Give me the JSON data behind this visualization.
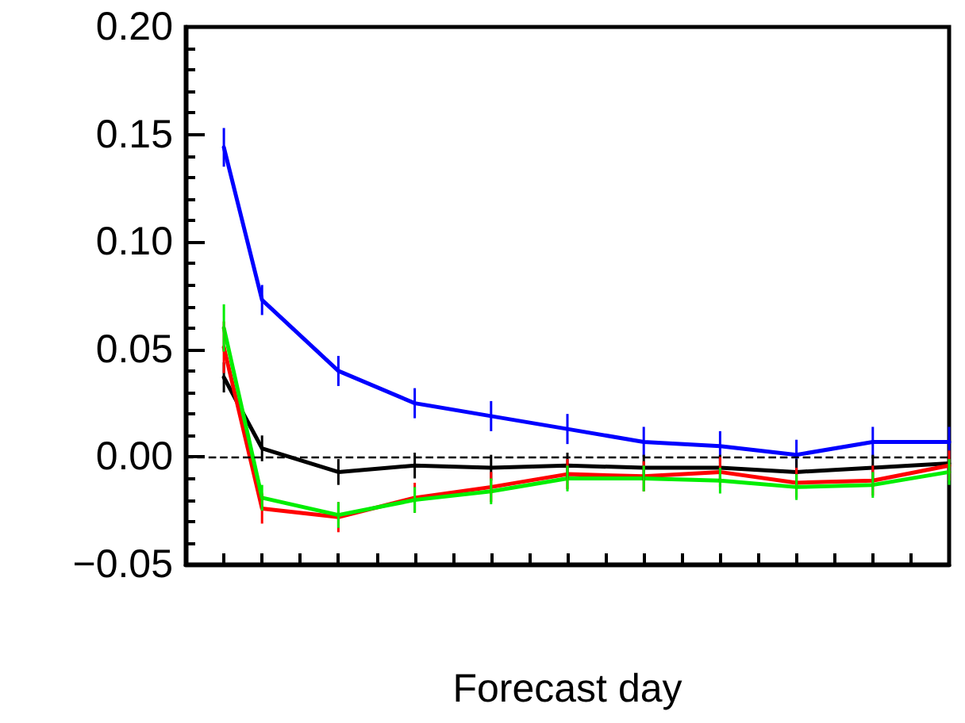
{
  "chart_data": {
    "type": "line",
    "xlabel": "Forecast day",
    "categories": [
      null,
      null,
      null,
      null,
      null,
      null,
      null,
      null,
      null,
      null,
      null,
      null,
      null,
      null,
      null,
      null,
      null,
      null,
      null,
      null,
      null
    ],
    "series": [
      {
        "color": "#0000ff",
        "values": [
          null,
          0.144,
          0.073,
          null,
          0.04,
          null,
          0.025,
          null,
          0.019,
          null,
          0.013,
          null,
          0.007,
          null,
          0.005,
          null,
          0.001,
          null,
          0.007,
          null,
          0.007
        ],
        "errors": [
          null,
          0.009,
          0.007,
          null,
          0.007,
          null,
          0.007,
          null,
          0.007,
          null,
          0.007,
          null,
          0.007,
          null,
          0.007,
          null,
          0.007,
          null,
          0.007,
          null,
          0.007
        ]
      },
      {
        "color": "#000000",
        "values": [
          null,
          0.037,
          0.004,
          null,
          -0.007,
          null,
          -0.004,
          null,
          -0.005,
          null,
          -0.004,
          null,
          -0.005,
          null,
          -0.005,
          null,
          -0.007,
          null,
          -0.005,
          null,
          -0.003
        ],
        "errors": [
          null,
          0.007,
          0.006,
          null,
          0.006,
          null,
          0.006,
          null,
          0.006,
          null,
          0.006,
          null,
          0.006,
          null,
          0.006,
          null,
          0.006,
          null,
          0.006,
          null,
          0.006
        ]
      },
      {
        "color": "#ff0000",
        "values": [
          null,
          0.051,
          -0.024,
          null,
          -0.028,
          null,
          -0.019,
          null,
          -0.014,
          null,
          -0.008,
          null,
          -0.009,
          null,
          -0.007,
          null,
          -0.012,
          null,
          -0.011,
          null,
          -0.004
        ],
        "errors": [
          null,
          0.012,
          0.007,
          null,
          0.007,
          null,
          0.007,
          null,
          0.007,
          null,
          0.007,
          null,
          0.007,
          null,
          0.007,
          null,
          0.007,
          null,
          0.007,
          null,
          0.007
        ]
      },
      {
        "color": "#00ee00",
        "values": [
          null,
          0.06,
          -0.019,
          null,
          -0.027,
          null,
          -0.02,
          null,
          -0.016,
          null,
          -0.01,
          null,
          -0.01,
          null,
          -0.011,
          null,
          -0.014,
          null,
          -0.013,
          null,
          -0.007
        ],
        "errors": [
          null,
          0.011,
          0.006,
          null,
          0.006,
          null,
          0.006,
          null,
          0.006,
          null,
          0.006,
          null,
          0.006,
          null,
          0.006,
          null,
          0.006,
          null,
          0.006,
          null,
          0.006
        ]
      }
    ],
    "ylim": [
      -0.05,
      0.2
    ],
    "yticks": [
      {
        "value": -0.05,
        "label": "−0.05"
      },
      {
        "value": 0,
        "label": "0.00"
      },
      {
        "value": 0.05,
        "label": "0.05"
      },
      {
        "value": 0.1,
        "label": "0.10"
      },
      {
        "value": 0.15,
        "label": "0.15"
      },
      {
        "value": 0.2,
        "label": "0.20"
      }
    ],
    "ref_lines": [
      {
        "axis": "y",
        "value": 0,
        "label": null,
        "color": "#000000",
        "line_style": "dashed"
      }
    ],
    "tick_labels": "y",
    "grid": false,
    "marker": "none",
    "line_style": "solid"
  }
}
